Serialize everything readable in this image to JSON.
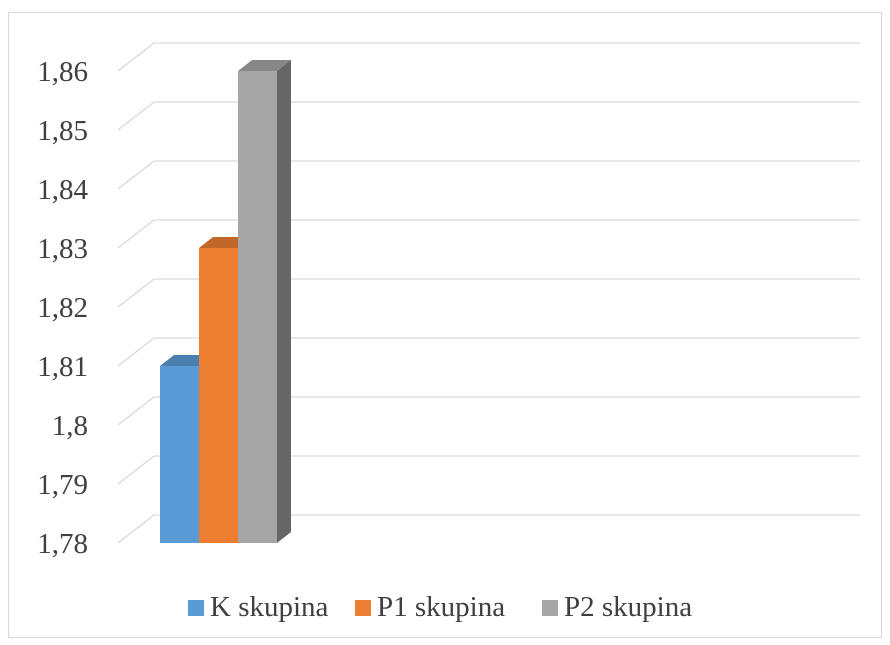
{
  "chart_data": {
    "type": "bar",
    "three_d": true,
    "title": "",
    "xlabel": "",
    "ylabel": "",
    "ylim": [
      1.78,
      1.86
    ],
    "y_step": 0.01,
    "y_ticks": [
      "1,78",
      "1,79",
      "1,8",
      "1,81",
      "1,82",
      "1,83",
      "1,84",
      "1,85",
      "1,86"
    ],
    "grid": true,
    "legend_position": "bottom",
    "categories": [
      ""
    ],
    "series": [
      {
        "name": "K skupina",
        "values": [
          1.81
        ],
        "color": "#5B9BD5"
      },
      {
        "name": "P1 skupina",
        "values": [
          1.83
        ],
        "color": "#ED7D31"
      },
      {
        "name": "P2 skupina",
        "values": [
          1.86
        ],
        "color": "#A5A5A5"
      }
    ]
  }
}
